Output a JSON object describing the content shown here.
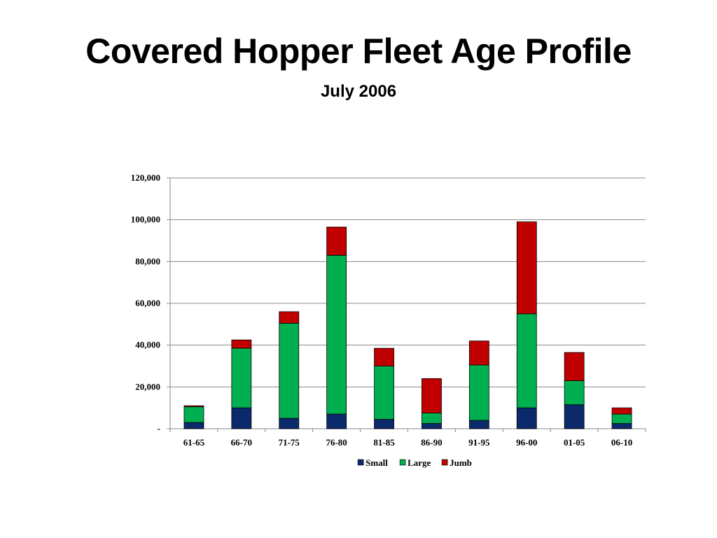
{
  "slide": {
    "title": "Covered Hopper Fleet Age Profile",
    "subtitle": "July 2006"
  },
  "chart_data": {
    "type": "bar",
    "stacked": true,
    "categories": [
      "61-65",
      "66-70",
      "71-75",
      "76-80",
      "81-85",
      "86-90",
      "91-95",
      "96-00",
      "01-05",
      "06-10"
    ],
    "series": [
      {
        "name": "Small",
        "color": "#0a2a6b",
        "values": [
          3000,
          10000,
          5000,
          7000,
          4500,
          2500,
          4000,
          10000,
          11500,
          2500
        ]
      },
      {
        "name": "Large",
        "color": "#00b050",
        "values": [
          7500,
          28500,
          45500,
          76000,
          25500,
          5000,
          26500,
          45000,
          11500,
          4500
        ]
      },
      {
        "name": "Jumb",
        "color": "#c00000",
        "values": [
          500,
          4000,
          5500,
          13500,
          8500,
          16500,
          11500,
          44000,
          13500,
          3000
        ]
      }
    ],
    "ylim": [
      0,
      120000
    ],
    "yticks": [
      {
        "value": 0,
        "label": "-"
      },
      {
        "value": 20000,
        "label": "20,000"
      },
      {
        "value": 40000,
        "label": "40,000"
      },
      {
        "value": 60000,
        "label": "60,000"
      },
      {
        "value": 80000,
        "label": "80,000"
      },
      {
        "value": 100000,
        "label": "100,000"
      },
      {
        "value": 120000,
        "label": "120,000"
      }
    ],
    "grid": true,
    "legend_position": "bottom",
    "xlabel": "",
    "ylabel": ""
  }
}
